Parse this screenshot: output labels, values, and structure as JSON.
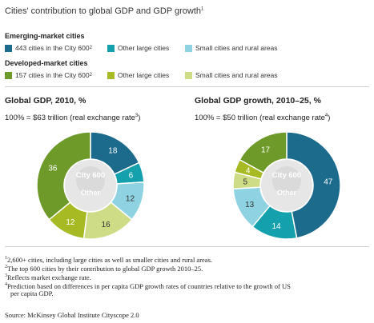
{
  "title": "Cities' contribution to global GDP and GDP growth",
  "title_sup": "1",
  "legend": {
    "emerging": {
      "title": "Emerging-market cities",
      "items": [
        {
          "label": "443 cities in the City 600",
          "sup": "2",
          "color": "#1c6a8c"
        },
        {
          "label": "Other large cities",
          "sup": "",
          "color": "#14a0ad"
        },
        {
          "label": "Small cities and rural areas",
          "sup": "",
          "color": "#8fd3e3"
        }
      ]
    },
    "developed": {
      "title": "Developed-market cities",
      "items": [
        {
          "label": "157 cities in the City 600",
          "sup": "2",
          "color": "#6e9a2a"
        },
        {
          "label": "Other large cities",
          "sup": "",
          "color": "#a7ba24"
        },
        {
          "label": "Small cities and rural areas",
          "sup": "",
          "color": "#cfdc86"
        }
      ]
    }
  },
  "charts": [
    {
      "title": "Global GDP, 2010, %",
      "subtitle": "100% = $63 trillion (real exchange rate",
      "subtitle_sup": "3",
      "subtitle_end": ")"
    },
    {
      "title": "Global GDP growth, 2010–25, %",
      "subtitle": "100% = $50 trillion (real exchange rate",
      "subtitle_sup": "4",
      "subtitle_end": ")"
    }
  ],
  "chart_data": [
    {
      "type": "pie",
      "title": "Global GDP, 2010, %",
      "center_labels": {
        "inner": "City 600",
        "outer": "Other"
      },
      "slices": [
        {
          "label": "Emerging-market cities: 443 cities in the City 600",
          "value": 18,
          "color": "#1c6a8c"
        },
        {
          "label": "Emerging-market cities: Other large cities",
          "value": 6,
          "color": "#14a0ad"
        },
        {
          "label": "Emerging-market cities: Small cities and rural areas",
          "value": 12,
          "color": "#8fd3e3"
        },
        {
          "label": "Developed-market cities: Small cities and rural areas",
          "value": 16,
          "color": "#cfdc86"
        },
        {
          "label": "Developed-market cities: Other large cities",
          "value": 12,
          "color": "#a7ba24"
        },
        {
          "label": "Developed-market cities: 157 cities in the City 600",
          "value": 36,
          "color": "#6e9a2a"
        }
      ]
    },
    {
      "type": "pie",
      "title": "Global GDP growth, 2010–25, %",
      "center_labels": {
        "inner": "City 600",
        "outer": "Other"
      },
      "slices": [
        {
          "label": "Emerging-market cities: 443 cities in the City 600",
          "value": 47,
          "color": "#1c6a8c"
        },
        {
          "label": "Emerging-market cities: Other large cities",
          "value": 14,
          "color": "#14a0ad"
        },
        {
          "label": "Emerging-market cities: Small cities and rural areas",
          "value": 13,
          "color": "#8fd3e3"
        },
        {
          "label": "Developed-market cities: Small cities and rural areas",
          "value": 5,
          "color": "#cfdc86"
        },
        {
          "label": "Developed-market cities: Other large cities",
          "value": 4,
          "color": "#a7ba24"
        },
        {
          "label": "Developed-market cities: 157 cities in the City 600",
          "value": 17,
          "color": "#6e9a2a"
        }
      ]
    }
  ],
  "footnotes": [
    {
      "sup": "1",
      "text": "2,600+ cities, including large cities as well as smaller cities and rural areas."
    },
    {
      "sup": "2",
      "text": "The top 600 cities by their contribution to global GDP growth 2010–25."
    },
    {
      "sup": "3",
      "text": "Reflects market exchange rate."
    },
    {
      "sup": "4",
      "text": "Prediction based on differences in per capita GDP growth rates of countries relative to the growth of US"
    },
    {
      "sup": "",
      "text": "per capita GDP."
    }
  ],
  "source": "Source: McKinsey Global Institute Cityscope 2.0"
}
